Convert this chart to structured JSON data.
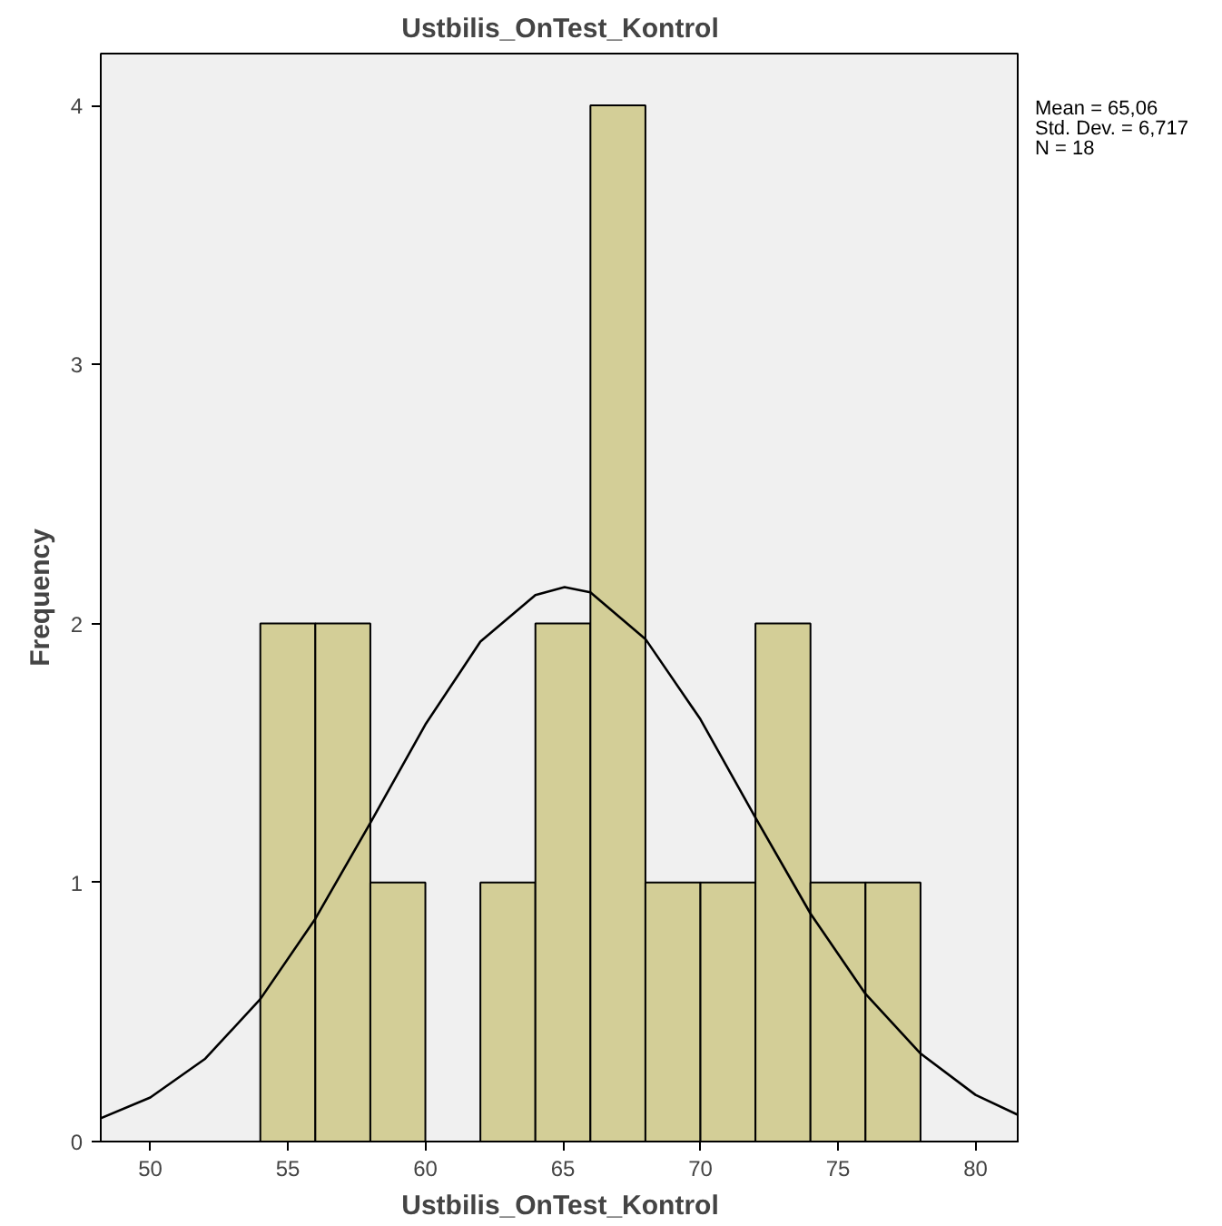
{
  "chart_data": {
    "type": "histogram",
    "title": "Ustbilis_OnTest_Kontrol",
    "xlabel": "Ustbilis_OnTest_Kontrol",
    "ylabel": "Frequency",
    "bins": [
      54,
      56,
      58,
      60,
      62,
      64,
      66,
      68,
      70,
      72,
      74,
      76,
      78
    ],
    "values": [
      2,
      2,
      1,
      0,
      1,
      2,
      4,
      1,
      1,
      2,
      1,
      1
    ],
    "color": "#d3ce97",
    "series": [
      {
        "type": "line",
        "color": "#000000",
        "x": [
          48.2,
          50,
          52,
          54,
          56,
          58,
          60,
          62,
          64,
          65.06,
          66,
          68,
          70,
          72,
          74,
          76,
          78,
          80,
          81.6
        ],
        "values": [
          0.09,
          0.17,
          0.32,
          0.55,
          0.86,
          1.23,
          1.61,
          1.93,
          2.11,
          2.14,
          2.12,
          1.94,
          1.63,
          1.25,
          0.88,
          0.57,
          0.34,
          0.18,
          0.1
        ]
      }
    ],
    "xlim": [
      48.2,
      81.6
    ],
    "ylim": [
      0,
      4.2
    ],
    "xticks": [
      50,
      55,
      60,
      65,
      70,
      75,
      80
    ],
    "yticks": [
      0,
      1,
      2,
      3,
      4
    ],
    "grid": false,
    "annotations": [
      "Mean = 65,06",
      "Std. Dev. = 6,717",
      "N = 18"
    ]
  }
}
